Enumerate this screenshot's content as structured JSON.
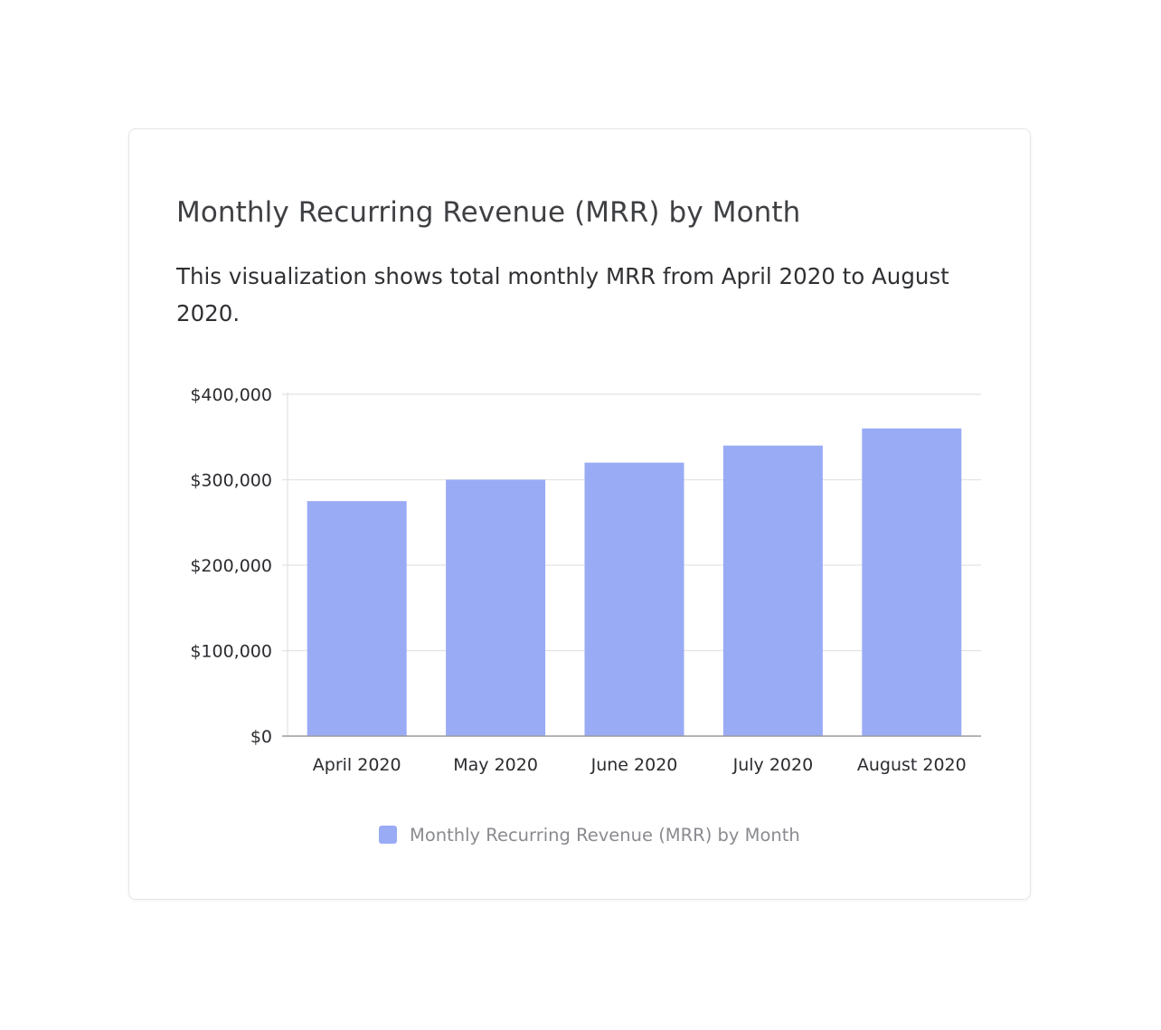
{
  "card": {
    "title": "Monthly Recurring Revenue (MRR) by Month",
    "description": "This visualization shows total monthly MRR from April 2020 to August 2020."
  },
  "colors": {
    "bar": "#9aabf5",
    "grid": "#e3e3e6",
    "axis": "#9a9aa0"
  },
  "chart_data": {
    "type": "bar",
    "categories": [
      "April 2020",
      "May 2020",
      "June 2020",
      "July 2020",
      "August 2020"
    ],
    "series": [
      {
        "name": "Monthly Recurring Revenue (MRR) by Month",
        "values": [
          275000,
          300000,
          320000,
          340000,
          360000
        ]
      }
    ],
    "yticks": [
      0,
      100000,
      200000,
      300000,
      400000
    ],
    "ytick_labels": [
      "$0",
      "$100,000",
      "$200,000",
      "$300,000",
      "$400,000"
    ],
    "ylim": [
      0,
      400000
    ],
    "grid": true,
    "legend_position": "bottom-center"
  }
}
